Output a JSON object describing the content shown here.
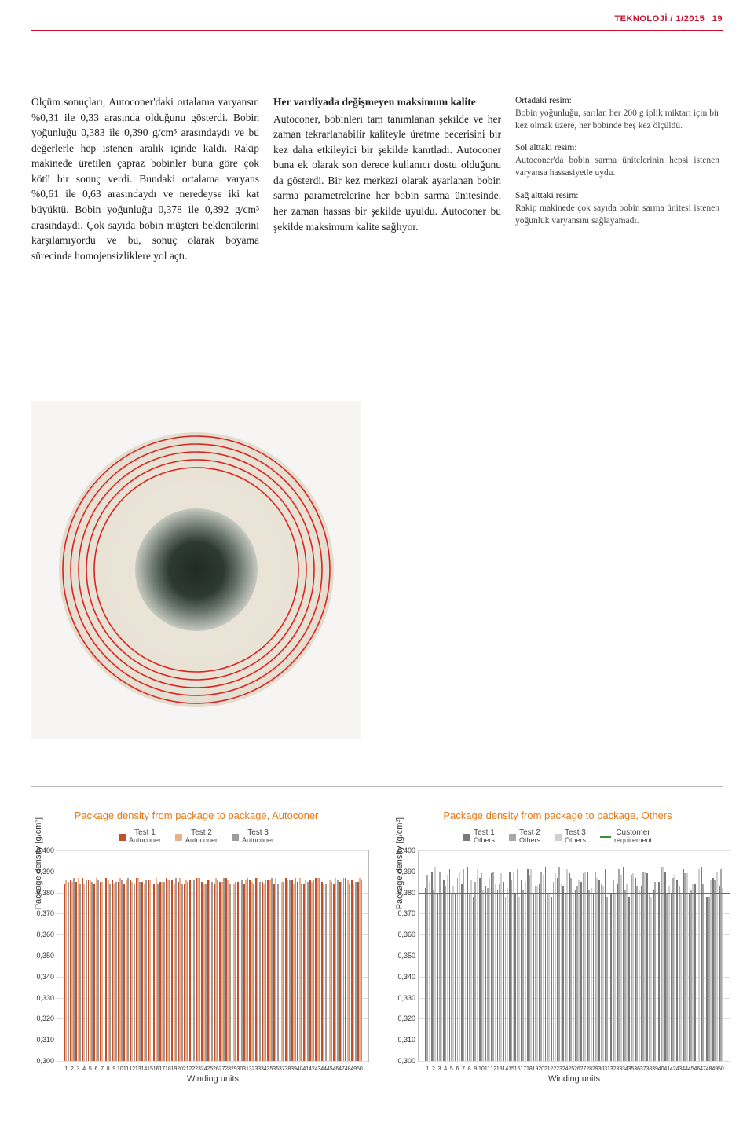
{
  "header": {
    "rubric": "TEKNOLOJİ / 1/2015",
    "page": "19"
  },
  "col1": "Ölçüm sonuçları, Autoconer'daki ortalama varyansın %0,31 ile 0,33 arasında olduğunu gösterdi. Bobin yoğunluğu 0,383 ile 0,390 g/cm³ arasındaydı ve bu değerlerle hep istenen aralık içinde kaldı. Rakip makinede üretilen çapraz bobinler buna göre çok kötü bir sonuç verdi. Bundaki ortalama varyans %0,61 ile 0,63 arasındaydı ve neredeyse iki kat büyüktü. Bobin yoğunluğu 0,378 ile 0,392 g/cm³ arasındaydı. Çok sayıda bobin müşteri beklentilerini karşılamıyordu ve bu, sonuç olarak boyama sürecinde homojensizliklere yol açtı.",
  "col2_heading": "Her vardiyada değişmeyen maksimum kalite",
  "col2": "Autoconer, bobinleri tam tanımlanan şekilde ve her zaman tekrarlanabilir kaliteyle üretme becerisini bir kez daha etkileyici bir şekilde kanıtladı. Autoconer buna ek olarak son derece kullanıcı dostu olduğunu da gösterdi. Bir kez merkezi olarak ayarlanan bobin sarma parametrelerine her bobin sarma ünitesinde, her zaman hassas bir şekilde uyuldu. Autoconer bu şekilde maksimum kalite sağlıyor.",
  "captions": [
    {
      "head": "Ortadaki resim:",
      "body": "Bobin yoğunluğu, sarılan her 200 g iplik miktarı için bir kez olmak üzere, her bobinde beş kez ölçüldü."
    },
    {
      "head": "Sol alttaki resim:",
      "body": "Autoconer'da bobin sarma ünitelerinin hepsi istenen varyansa hassasiyetle uydu."
    },
    {
      "head": "Sağ alttaki resim:",
      "body": "Rakip makinede çok sayıda bobin sarma ünitesi istenen yoğunluk varyansını sağlayamadı."
    }
  ],
  "bobbin": {
    "bg": "#f6f5f3",
    "ring_color": "#d22",
    "ring_stroke": 1.6,
    "ring_radii": [
      170,
      160,
      150,
      140,
      130
    ],
    "yarn_fill": "#ece7da",
    "hole_outer": 78,
    "hole_gradient_inner": "#1f2a22",
    "hole_gradient_mid": "#56635a",
    "hole_gradient_outer": "#c0c4bb"
  },
  "chart_common": {
    "ylabel": "Package density [g/cm³]",
    "xlabel": "Winding units",
    "ymin": 0.3,
    "ymax": 0.4,
    "yticks": [
      "0,400",
      "0,390",
      "0,380",
      "0,370",
      "0,360",
      "0,350",
      "0,340",
      "0,330",
      "0,320",
      "0,310",
      "0,300"
    ],
    "requirement": 0.38,
    "n_units": 50,
    "grid_color": "#dddddd",
    "border_color": "#bbbbbb"
  },
  "chart_left": {
    "title": "Package density from package to package, Autoconer",
    "legend": [
      {
        "label": "Test 1",
        "sub": "Autoconer",
        "color": "#c14f2b"
      },
      {
        "label": "Test 2",
        "sub": "Autoconer",
        "color": "#e7b18f"
      },
      {
        "label": "Test 3",
        "sub": "Autoconer",
        "color": "#9c9c9c"
      }
    ],
    "series": [
      [
        0.384,
        0.386,
        0.385,
        0.387,
        0.386,
        0.384,
        0.385,
        0.387,
        0.386,
        0.385,
        0.384,
        0.386,
        0.387,
        0.385,
        0.386,
        0.384,
        0.385,
        0.387,
        0.386,
        0.385,
        0.384,
        0.386,
        0.387,
        0.385,
        0.386,
        0.384,
        0.385,
        0.387,
        0.386,
        0.385,
        0.384,
        0.386,
        0.387,
        0.385,
        0.386,
        0.384,
        0.385,
        0.387,
        0.386,
        0.385,
        0.384,
        0.386,
        0.387,
        0.385,
        0.386,
        0.384,
        0.385,
        0.387,
        0.386,
        0.385
      ],
      [
        0.386,
        0.385,
        0.387,
        0.384,
        0.386,
        0.387,
        0.385,
        0.386,
        0.384,
        0.387,
        0.386,
        0.385,
        0.387,
        0.384,
        0.386,
        0.387,
        0.385,
        0.386,
        0.384,
        0.387,
        0.386,
        0.385,
        0.387,
        0.384,
        0.386,
        0.387,
        0.385,
        0.386,
        0.384,
        0.387,
        0.386,
        0.385,
        0.387,
        0.384,
        0.386,
        0.387,
        0.385,
        0.386,
        0.384,
        0.387,
        0.386,
        0.385,
        0.387,
        0.384,
        0.386,
        0.387,
        0.385,
        0.386,
        0.384,
        0.387
      ],
      [
        0.385,
        0.387,
        0.384,
        0.386,
        0.385,
        0.386,
        0.387,
        0.384,
        0.385,
        0.386,
        0.387,
        0.384,
        0.385,
        0.386,
        0.387,
        0.384,
        0.385,
        0.386,
        0.387,
        0.384,
        0.385,
        0.386,
        0.387,
        0.384,
        0.385,
        0.386,
        0.387,
        0.384,
        0.385,
        0.386,
        0.387,
        0.384,
        0.385,
        0.386,
        0.387,
        0.384,
        0.385,
        0.386,
        0.387,
        0.384,
        0.385,
        0.386,
        0.387,
        0.384,
        0.385,
        0.386,
        0.387,
        0.384,
        0.385,
        0.386
      ]
    ],
    "colors": [
      "#c14f2b",
      "#e7b18f",
      "#9c9c9c"
    ]
  },
  "chart_right": {
    "title": "Package density from package to package, Others",
    "legend": [
      {
        "label": "Test 1",
        "sub": "Others",
        "color": "#7a7a7a"
      },
      {
        "label": "Test 2",
        "sub": "Others",
        "color": "#a8a8a8"
      },
      {
        "label": "Test 3",
        "sub": "Others",
        "color": "#cfcfcf"
      },
      {
        "label": "Customer",
        "sub": "requirement",
        "color": "#3b8f3b",
        "type": "line"
      }
    ],
    "series": [
      [
        0.382,
        0.39,
        0.379,
        0.386,
        0.391,
        0.38,
        0.384,
        0.392,
        0.378,
        0.387,
        0.383,
        0.389,
        0.381,
        0.385,
        0.39,
        0.379,
        0.386,
        0.391,
        0.38,
        0.384,
        0.392,
        0.378,
        0.387,
        0.383,
        0.389,
        0.381,
        0.385,
        0.39,
        0.379,
        0.386,
        0.391,
        0.38,
        0.384,
        0.392,
        0.378,
        0.387,
        0.383,
        0.389,
        0.381,
        0.385,
        0.39,
        0.379,
        0.386,
        0.391,
        0.38,
        0.384,
        0.392,
        0.378,
        0.387,
        0.383
      ],
      [
        0.388,
        0.381,
        0.39,
        0.383,
        0.379,
        0.387,
        0.391,
        0.38,
        0.385,
        0.389,
        0.382,
        0.39,
        0.384,
        0.378,
        0.386,
        0.391,
        0.381,
        0.388,
        0.383,
        0.39,
        0.379,
        0.385,
        0.392,
        0.38,
        0.387,
        0.383,
        0.389,
        0.381,
        0.39,
        0.384,
        0.378,
        0.386,
        0.391,
        0.381,
        0.388,
        0.383,
        0.39,
        0.379,
        0.385,
        0.392,
        0.38,
        0.387,
        0.383,
        0.389,
        0.381,
        0.39,
        0.384,
        0.378,
        0.386,
        0.391
      ],
      [
        0.385,
        0.392,
        0.38,
        0.388,
        0.383,
        0.39,
        0.379,
        0.386,
        0.391,
        0.381,
        0.387,
        0.384,
        0.389,
        0.382,
        0.39,
        0.378,
        0.385,
        0.391,
        0.383,
        0.388,
        0.38,
        0.389,
        0.384,
        0.391,
        0.379,
        0.386,
        0.39,
        0.382,
        0.387,
        0.383,
        0.391,
        0.38,
        0.388,
        0.384,
        0.389,
        0.381,
        0.39,
        0.378,
        0.385,
        0.392,
        0.383,
        0.388,
        0.38,
        0.389,
        0.384,
        0.391,
        0.379,
        0.386,
        0.39,
        0.382
      ]
    ],
    "colors": [
      "#7a7a7a",
      "#a8a8a8",
      "#cfcfcf"
    ],
    "requirement_color": "#3b8f3b"
  }
}
